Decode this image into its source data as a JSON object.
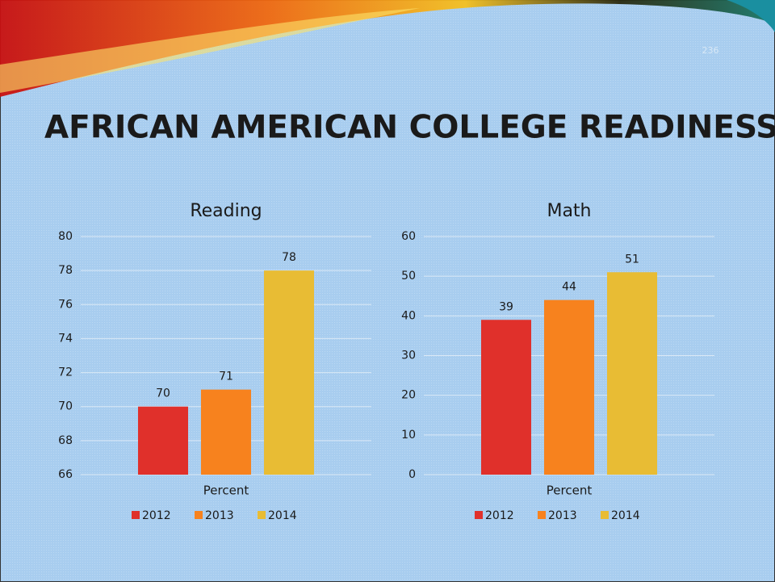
{
  "slide": {
    "title": "AFRICAN AMERICAN COLLEGE READINESS",
    "page_number": "236"
  },
  "chart_data": [
    {
      "type": "bar",
      "title": "Reading",
      "categories": [
        "Percent"
      ],
      "series": [
        {
          "name": "2012",
          "color": "#e0302b",
          "values": [
            70
          ]
        },
        {
          "name": "2013",
          "color": "#f7821e",
          "values": [
            71
          ]
        },
        {
          "name": "2014",
          "color": "#e8bc34",
          "values": [
            78
          ]
        }
      ],
      "ylim": [
        66,
        80
      ],
      "yticks": [
        66,
        68,
        70,
        72,
        74,
        76,
        78,
        80
      ],
      "grid": true,
      "legend": "bottom"
    },
    {
      "type": "bar",
      "title": "Math",
      "categories": [
        "Percent"
      ],
      "series": [
        {
          "name": "2012",
          "color": "#e0302b",
          "values": [
            39
          ]
        },
        {
          "name": "2013",
          "color": "#f7821e",
          "values": [
            44
          ]
        },
        {
          "name": "2014",
          "color": "#e8bc34",
          "values": [
            51
          ]
        }
      ],
      "ylim": [
        0,
        60
      ],
      "yticks": [
        0,
        10,
        20,
        30,
        40,
        50,
        60
      ],
      "grid": true,
      "legend": "bottom"
    }
  ]
}
